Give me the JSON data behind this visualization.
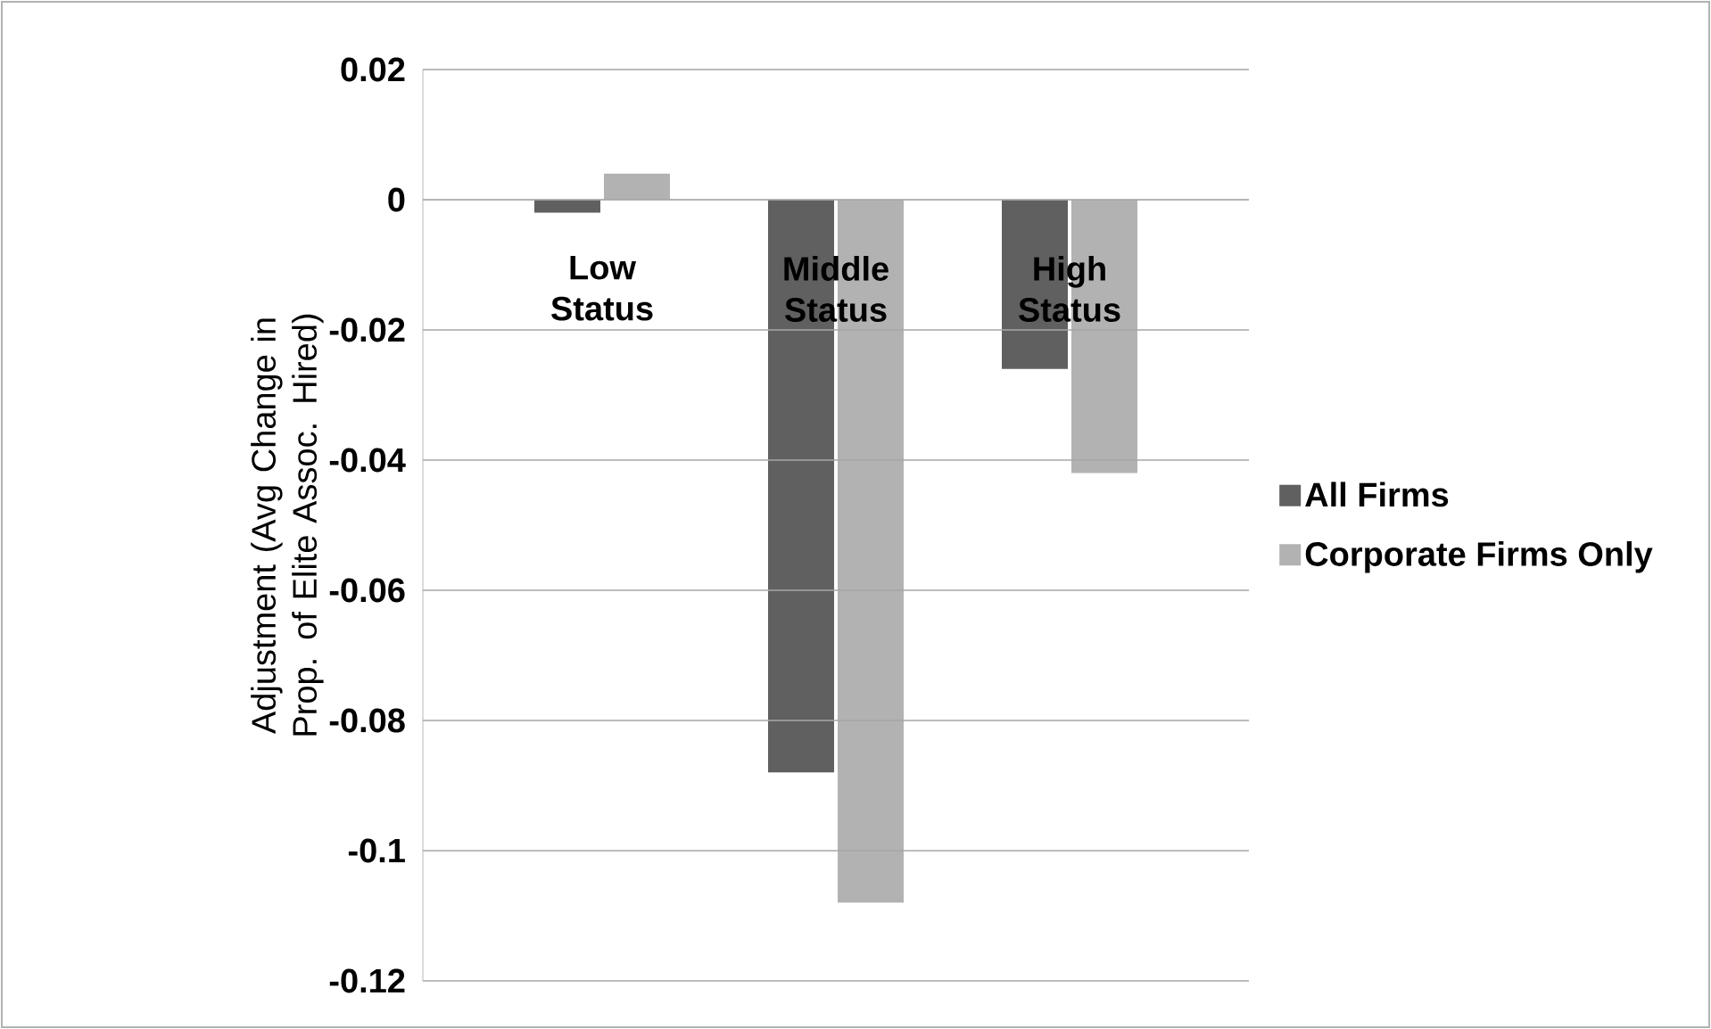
{
  "chart_data": {
    "type": "bar",
    "ylabel": "Adjustment (Avg Change in Prop. of Elite Assoc. Hired)",
    "categories": [
      "Low Status",
      "Middle Status",
      "High Status"
    ],
    "series": [
      {
        "name": "All Firms",
        "color": "#606060",
        "values": [
          -0.002,
          -0.088,
          -0.026
        ]
      },
      {
        "name": "Corporate Firms Only",
        "color": "#b2b2b2",
        "values": [
          0.004,
          -0.108,
          -0.042
        ]
      }
    ],
    "ylim": [
      -0.12,
      0.02
    ],
    "yticks": [
      -0.12,
      -0.1,
      -0.08,
      -0.06,
      -0.04,
      -0.02,
      0,
      0.02
    ],
    "grid": "y",
    "legend": "right"
  }
}
